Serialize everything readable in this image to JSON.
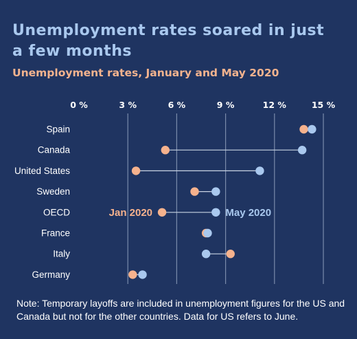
{
  "title": "Unemployment rates soared in just a few months",
  "subtitle": "Unemployment rates, January and May 2020",
  "note": "Note: Temporary layoffs are included in unemployment figures for the US and Canada but not for the other countries. Data for US refers to June.",
  "colors": {
    "background": "#1f3461",
    "jan": "#f6b28d",
    "may": "#a9c8ee",
    "grid": "#7a8bab",
    "connector": "#c9d3e3"
  },
  "chart_data": {
    "type": "scatter",
    "xlim": [
      0,
      15
    ],
    "x_ticks": [
      0,
      3,
      6,
      9,
      12,
      15
    ],
    "x_tick_labels": [
      "0 %",
      "3 %",
      "6 %",
      "9 %",
      "12 %",
      "15 %"
    ],
    "categories": [
      "Spain",
      "Canada",
      "United States",
      "Sweden",
      "OECD",
      "France",
      "Italy",
      "Germany"
    ],
    "series": [
      {
        "name": "Jan 2020",
        "values": [
          13.8,
          5.3,
          3.5,
          7.1,
          5.1,
          7.8,
          9.3,
          3.3
        ]
      },
      {
        "name": "May 2020",
        "values": [
          14.3,
          13.7,
          11.1,
          8.4,
          8.4,
          7.9,
          7.8,
          3.9
        ]
      }
    ],
    "grid": true
  }
}
